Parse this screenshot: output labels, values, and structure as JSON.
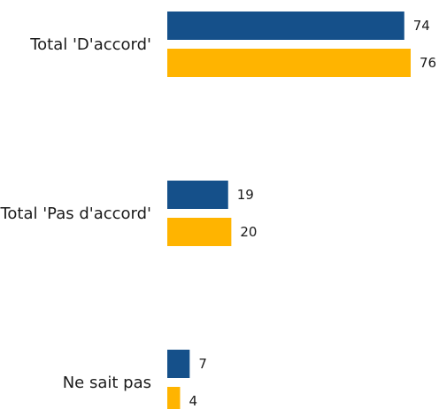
{
  "chart_data": {
    "type": "bar",
    "orientation": "horizontal",
    "categories": [
      "Total 'D'accord'",
      "Total 'Pas d'accord'",
      "Ne sait pas"
    ],
    "series": [
      {
        "values": [
          74,
          19,
          7
        ],
        "color": "#15508a"
      },
      {
        "values": [
          76,
          20,
          4
        ],
        "color": "#ffb400"
      }
    ],
    "xlim": [
      0,
      76
    ],
    "grid": false,
    "legend": "none"
  }
}
